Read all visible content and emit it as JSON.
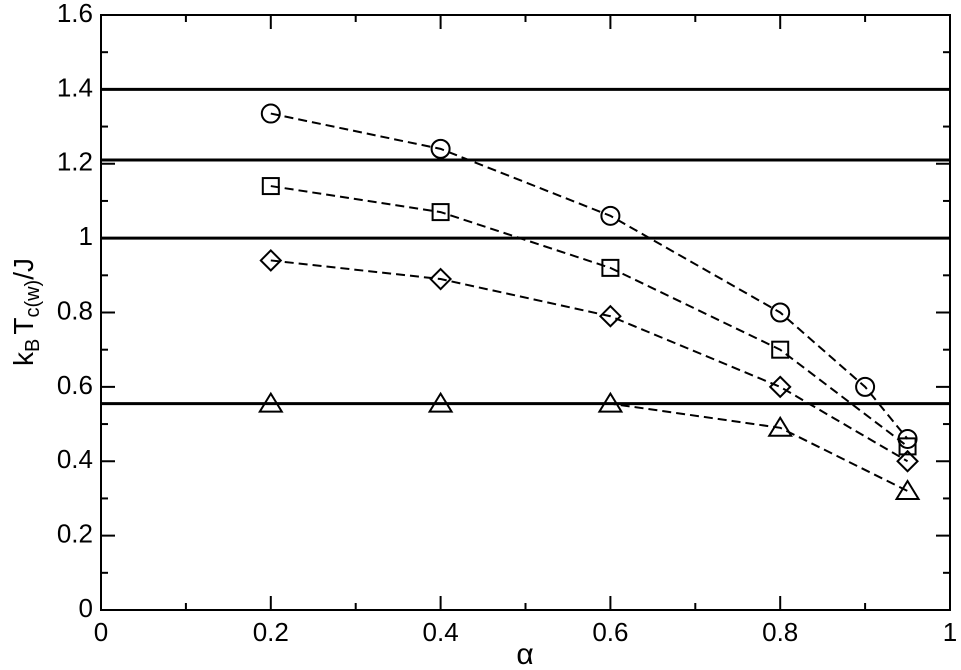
{
  "chart_data": {
    "type": "line",
    "xlabel": "α",
    "ylabel": [
      "k",
      "B",
      "T",
      "c(w)",
      "/J"
    ],
    "xlim": [
      0,
      1
    ],
    "xticks": [
      0,
      0.2,
      0.4,
      0.6,
      0.8,
      1
    ],
    "x_minor_ticks": [
      0.1,
      0.3,
      0.5,
      0.7,
      0.9
    ],
    "ylim": [
      0,
      1.6
    ],
    "yticks": [
      0,
      0.2,
      0.4,
      0.6,
      0.8,
      1,
      1.2,
      1.4,
      1.6
    ],
    "y_minor_ticks": [
      0.1,
      0.3,
      0.5,
      0.7,
      0.9,
      1.1,
      1.3,
      1.5
    ],
    "hlines": [
      1.4,
      1.21,
      1.0,
      0.555
    ],
    "series": [
      {
        "marker": "circle",
        "color": "#000000",
        "x": [
          0.2,
          0.4,
          0.6,
          0.8,
          0.9,
          0.95
        ],
        "values": [
          1.335,
          1.24,
          1.06,
          0.8,
          0.6,
          0.46
        ]
      },
      {
        "marker": "square",
        "color": "#000000",
        "x": [
          0.2,
          0.4,
          0.6,
          0.8,
          0.95
        ],
        "values": [
          1.14,
          1.07,
          0.92,
          0.7,
          0.44
        ]
      },
      {
        "marker": "diamond",
        "color": "#000000",
        "x": [
          0.2,
          0.4,
          0.6,
          0.8,
          0.95
        ],
        "values": [
          0.94,
          0.89,
          0.79,
          0.6,
          0.4
        ]
      },
      {
        "marker": "triangle",
        "color": "#000000",
        "x": [
          0.2,
          0.4,
          0.6,
          0.8,
          0.95
        ],
        "values": [
          0.555,
          0.555,
          0.555,
          0.49,
          0.32
        ]
      }
    ]
  }
}
